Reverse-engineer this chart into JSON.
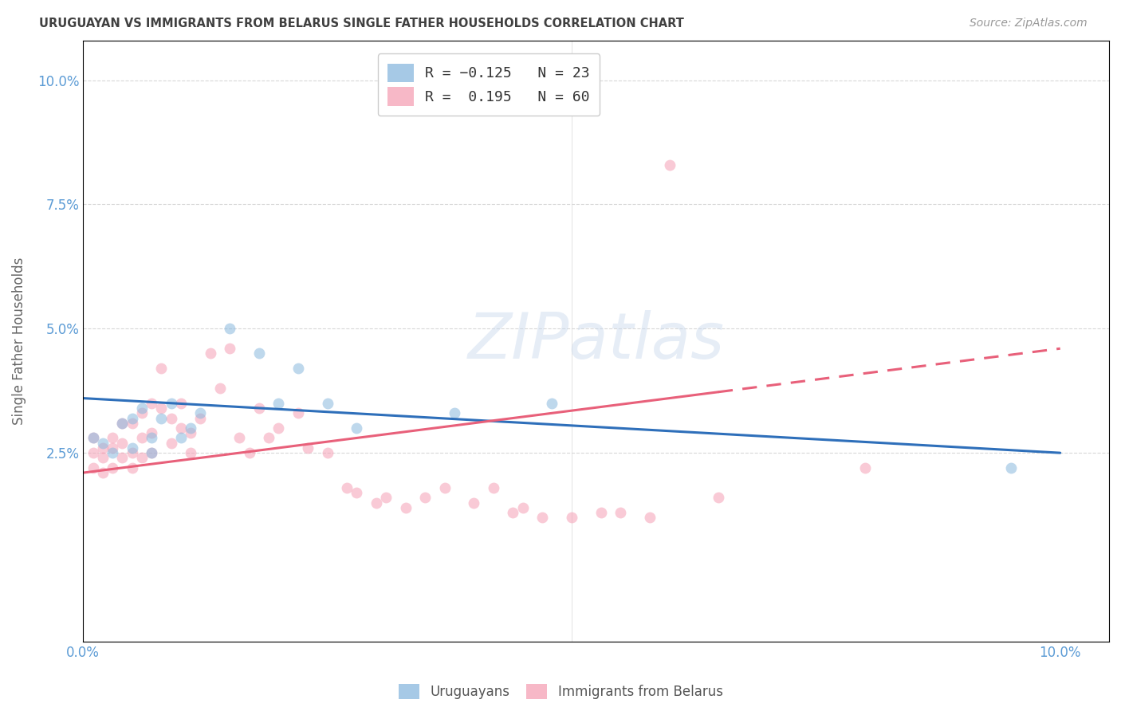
{
  "title": "URUGUAYAN VS IMMIGRANTS FROM BELARUS SINGLE FATHER HOUSEHOLDS CORRELATION CHART",
  "source": "Source: ZipAtlas.com",
  "ylabel": "Single Father Households",
  "xlim": [
    0.0,
    0.105
  ],
  "ylim": [
    -0.013,
    0.108
  ],
  "yticks": [
    0.025,
    0.05,
    0.075,
    0.1
  ],
  "ytick_labels": [
    "2.5%",
    "5.0%",
    "7.5%",
    "10.0%"
  ],
  "xticks": [
    0.0,
    0.1
  ],
  "xtick_labels": [
    "0.0%",
    "10.0%"
  ],
  "background_color": "#ffffff",
  "grid_color": "#d8d8d8",
  "title_color": "#404040",
  "axis_tick_color": "#5b9bd5",
  "legend_label1": "R = -0.125   N = 23",
  "legend_label2": "R =  0.195   N = 60",
  "color_uruguayan": "#89b8de",
  "color_belarus": "#f5a0b5",
  "line_color_uruguayan": "#2e6fba",
  "line_color_belarus": "#e8607a",
  "uruguayan_x": [
    0.001,
    0.002,
    0.003,
    0.004,
    0.005,
    0.005,
    0.006,
    0.007,
    0.007,
    0.008,
    0.009,
    0.01,
    0.011,
    0.012,
    0.015,
    0.018,
    0.02,
    0.022,
    0.025,
    0.028,
    0.038,
    0.048,
    0.095
  ],
  "uruguayan_y": [
    0.028,
    0.027,
    0.025,
    0.031,
    0.032,
    0.026,
    0.034,
    0.028,
    0.025,
    0.032,
    0.035,
    0.028,
    0.03,
    0.033,
    0.05,
    0.045,
    0.035,
    0.042,
    0.035,
    0.03,
    0.033,
    0.035,
    0.022
  ],
  "belarus_x": [
    0.001,
    0.001,
    0.001,
    0.002,
    0.002,
    0.002,
    0.003,
    0.003,
    0.003,
    0.004,
    0.004,
    0.004,
    0.005,
    0.005,
    0.005,
    0.006,
    0.006,
    0.006,
    0.007,
    0.007,
    0.007,
    0.008,
    0.008,
    0.009,
    0.009,
    0.01,
    0.01,
    0.011,
    0.011,
    0.012,
    0.013,
    0.014,
    0.015,
    0.016,
    0.017,
    0.018,
    0.019,
    0.02,
    0.022,
    0.023,
    0.025,
    0.027,
    0.028,
    0.03,
    0.031,
    0.033,
    0.035,
    0.037,
    0.04,
    0.042,
    0.044,
    0.045,
    0.047,
    0.05,
    0.053,
    0.055,
    0.058,
    0.06,
    0.065,
    0.08
  ],
  "belarus_y": [
    0.022,
    0.025,
    0.028,
    0.021,
    0.024,
    0.026,
    0.022,
    0.026,
    0.028,
    0.024,
    0.027,
    0.031,
    0.022,
    0.025,
    0.031,
    0.024,
    0.028,
    0.033,
    0.025,
    0.029,
    0.035,
    0.042,
    0.034,
    0.027,
    0.032,
    0.03,
    0.035,
    0.025,
    0.029,
    0.032,
    0.045,
    0.038,
    0.046,
    0.028,
    0.025,
    0.034,
    0.028,
    0.03,
    0.033,
    0.026,
    0.025,
    0.018,
    0.017,
    0.015,
    0.016,
    0.014,
    0.016,
    0.018,
    0.015,
    0.018,
    0.013,
    0.014,
    0.012,
    0.012,
    0.013,
    0.013,
    0.012,
    0.083,
    0.016,
    0.022
  ],
  "watermark": "ZIPatlas",
  "marker_size": 100,
  "alpha": 0.55,
  "line_uru_x0": 0.0,
  "line_uru_y0": 0.036,
  "line_uru_x1": 0.1,
  "line_uru_y1": 0.025,
  "line_bel_x0": 0.0,
  "line_bel_y0": 0.021,
  "line_bel_x1": 0.1,
  "line_bel_y1": 0.046,
  "line_bel_dash_start": 0.065
}
